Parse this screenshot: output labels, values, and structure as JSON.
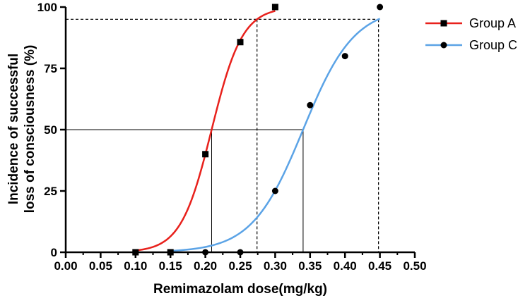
{
  "chart_data": {
    "type": "line",
    "title": "",
    "xlabel": "Remimazolam dose(mg/kg)",
    "ylabel_lines": [
      "Incidence of successful",
      "loss of consciousness  (%)"
    ],
    "xlim": [
      0,
      0.5
    ],
    "ylim": [
      0,
      100
    ],
    "x_ticks": [
      "0.00",
      "0.05",
      "0.10",
      "0.15",
      "0.20",
      "0.25",
      "0.30",
      "0.35",
      "0.40",
      "0.45",
      "0.50"
    ],
    "y_ticks": [
      "0",
      "25",
      "50",
      "75",
      "100"
    ],
    "grid": false,
    "legend_position": "top-right",
    "series": [
      {
        "name": "Group A",
        "color": "#e8211c",
        "marker": "square",
        "points": [
          {
            "x": 0.1,
            "y": 0
          },
          {
            "x": 0.15,
            "y": 0
          },
          {
            "x": 0.2,
            "y": 40
          },
          {
            "x": 0.25,
            "y": 85.7
          },
          {
            "x": 0.3,
            "y": 100
          }
        ],
        "fit": {
          "x_range": [
            0.1,
            0.3
          ],
          "ed50": 0.209,
          "ed95": 0.274
        }
      },
      {
        "name": "Group C",
        "color": "#5ba3e6",
        "marker": "circle",
        "points": [
          {
            "x": 0.2,
            "y": 0
          },
          {
            "x": 0.25,
            "y": 0
          },
          {
            "x": 0.3,
            "y": 25
          },
          {
            "x": 0.35,
            "y": 60
          },
          {
            "x": 0.4,
            "y": 80
          },
          {
            "x": 0.45,
            "y": 100
          }
        ],
        "fit": {
          "x_range": [
            0.15,
            0.45
          ],
          "ed50": 0.34,
          "ed95": 0.448
        }
      }
    ],
    "reference_lines": {
      "ed50_level": 50,
      "ed95_level": 95
    }
  }
}
